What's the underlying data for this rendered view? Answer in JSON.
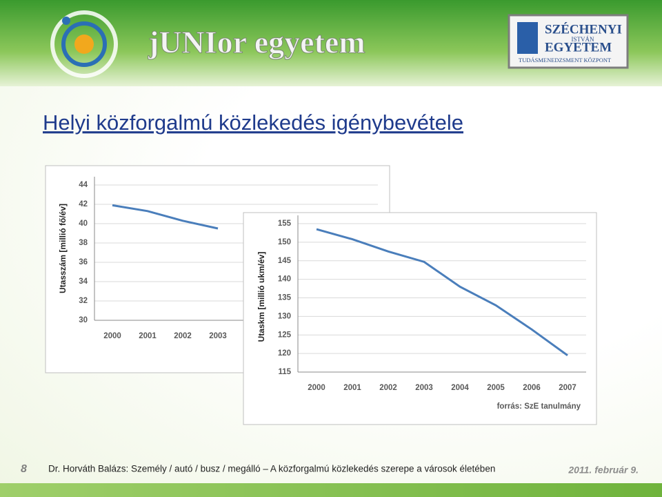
{
  "header": {
    "brand": "jUNIor egyetem",
    "logo_line1": "SZÉCHENYI",
    "logo_line2": "ISTVÁN",
    "logo_line3": "EGYETEM",
    "logo_line4": "TUDÁSMENEDZSMENT KÖZPONT"
  },
  "title": "Helyi közforgalmú közlekedés igénybevétele",
  "chart_data": [
    {
      "type": "line",
      "y_label": "Utasszám [millió fő/év]",
      "categories": [
        "2000",
        "2001",
        "2002",
        "2003"
      ],
      "values": [
        41.9,
        41.3,
        40.3,
        39.5
      ],
      "color": "#4a7ebb",
      "ylim": [
        30,
        44
      ],
      "yticks": [
        30,
        32,
        34,
        36,
        38,
        40,
        42,
        44
      ],
      "grid": true
    },
    {
      "type": "line",
      "y_label": "Utaskm [millió ukm/év]",
      "categories": [
        "2000",
        "2001",
        "2002",
        "2003",
        "2004",
        "2005",
        "2006",
        "2007"
      ],
      "values": [
        153.5,
        150.8,
        147.5,
        144.7,
        138,
        133,
        126.5,
        119.5
      ],
      "color": "#4a7ebb",
      "ylim": [
        115,
        155
      ],
      "yticks": [
        115,
        120,
        125,
        130,
        135,
        140,
        145,
        150,
        155
      ],
      "grid": true,
      "annotation": "forrás: SzE tanulmány"
    }
  ],
  "footer": {
    "slide_number": "8",
    "text": "Dr. Horváth Balázs: Személy / autó / busz / megálló – A közforgalmú közlekedés szerepe a városok életében",
    "date": "2011. február 9."
  }
}
